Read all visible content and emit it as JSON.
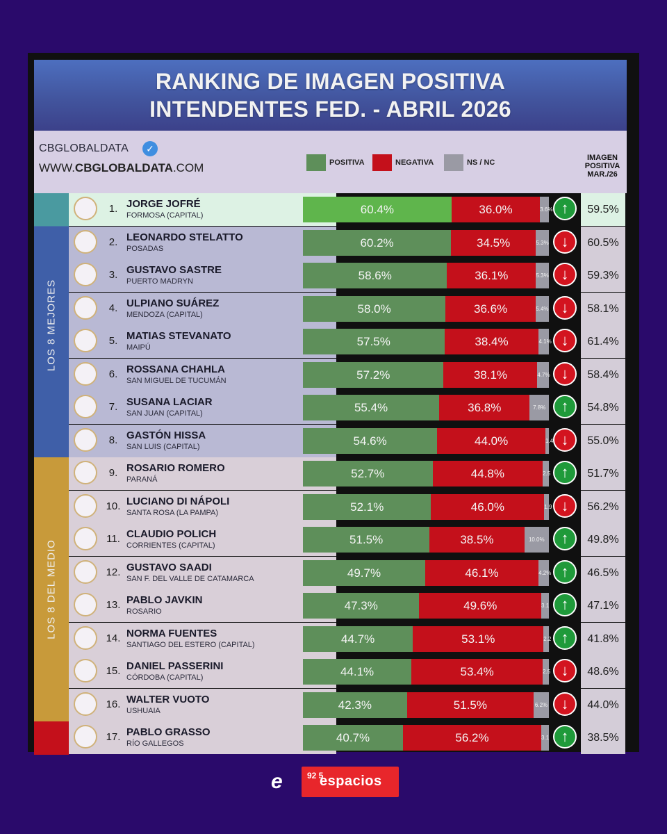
{
  "header": {
    "title_line1": "RANKING DE IMAGEN POSITIVA",
    "title_line2": "INTENDENTES FED. - ABRIL 2026"
  },
  "brand": {
    "name": "CBGLOBALDATA",
    "url_prefix": "WWW.",
    "url_bold": "CBGLOBALDATA",
    "url_suffix": ".COM"
  },
  "legend": [
    {
      "label": "POSITIVA",
      "color": "#5e8f5a"
    },
    {
      "label": "NEGATIVA",
      "color": "#c4101b"
    },
    {
      "label": "NS / NC",
      "color": "#9a9aa4"
    }
  ],
  "prev_column_header": "IMAGEN POSITIVA MAR./26",
  "groups": [
    {
      "label": "LOS 8 MEJORES",
      "color": "#3f5fa8",
      "row_start": 0,
      "row_count": 8
    },
    {
      "label": "LOS 8 DEL MEDIO",
      "color": "#c89a3a",
      "row_start": 8,
      "row_count": 8
    },
    {
      "label": "",
      "color": "#c4101b",
      "row_start": 16,
      "row_count": 1
    }
  ],
  "footer": {
    "logo_mark": "e",
    "logo_number": "92 5",
    "logo_text": "espacios"
  },
  "chart_data": {
    "type": "bar",
    "title": "RANKING DE IMAGEN POSITIVA INTENDENTES FED. - ABRIL 2026",
    "stacked": true,
    "orientation": "horizontal",
    "series_names": [
      "POSITIVA",
      "NEGATIVA",
      "NS / NC"
    ],
    "rows": [
      {
        "rank": "1.",
        "name": "JORGE JOFRÉ",
        "city": "FORMOSA (CAPITAL)",
        "positiva": 60.4,
        "negativa": 36.0,
        "nsnc": 3.6,
        "positiva_label": "60.4%",
        "negativa_label": "36.0%",
        "nsnc_label": "3.6%",
        "trend": "up",
        "prev_label": "59.5%"
      },
      {
        "rank": "2.",
        "name": "LEONARDO STELATTO",
        "city": "POSADAS",
        "positiva": 60.2,
        "negativa": 34.5,
        "nsnc": 5.3,
        "positiva_label": "60.2%",
        "negativa_label": "34.5%",
        "nsnc_label": "5.3%",
        "trend": "down",
        "prev_label": "60.5%"
      },
      {
        "rank": "3.",
        "name": "GUSTAVO SASTRE",
        "city": "PUERTO MADRYN",
        "positiva": 58.6,
        "negativa": 36.1,
        "nsnc": 5.3,
        "positiva_label": "58.6%",
        "negativa_label": "36.1%",
        "nsnc_label": "5.3%",
        "trend": "down",
        "prev_label": "59.3%"
      },
      {
        "rank": "4.",
        "name": "ULPIANO SUÁREZ",
        "city": "MENDOZA (CAPITAL)",
        "positiva": 58.0,
        "negativa": 36.6,
        "nsnc": 5.4,
        "positiva_label": "58.0%",
        "negativa_label": "36.6%",
        "nsnc_label": "5.4%",
        "trend": "down",
        "prev_label": "58.1%"
      },
      {
        "rank": "5.",
        "name": "MATIAS STEVANATO",
        "city": "MAIPÚ",
        "positiva": 57.5,
        "negativa": 38.4,
        "nsnc": 4.1,
        "positiva_label": "57.5%",
        "negativa_label": "38.4%",
        "nsnc_label": "4.1%",
        "trend": "down",
        "prev_label": "61.4%"
      },
      {
        "rank": "6.",
        "name": "ROSSANA CHAHLA",
        "city": "SAN MIGUEL DE TUCUMÁN",
        "positiva": 57.2,
        "negativa": 38.1,
        "nsnc": 4.7,
        "positiva_label": "57.2%",
        "negativa_label": "38.1%",
        "nsnc_label": "4.7%",
        "trend": "down",
        "prev_label": "58.4%"
      },
      {
        "rank": "7.",
        "name": "SUSANA LACIAR",
        "city": "SAN JUAN (CAPITAL)",
        "positiva": 55.4,
        "negativa": 36.8,
        "nsnc": 7.8,
        "positiva_label": "55.4%",
        "negativa_label": "36.8%",
        "nsnc_label": "7.8%",
        "trend": "up",
        "prev_label": "54.8%"
      },
      {
        "rank": "8.",
        "name": "GASTÓN HISSA",
        "city": "SAN LUIS (CAPITAL)",
        "positiva": 54.6,
        "negativa": 44.0,
        "nsnc": 1.4,
        "positiva_label": "54.6%",
        "negativa_label": "44.0%",
        "nsnc_label": "1.4",
        "trend": "down",
        "prev_label": "55.0%"
      },
      {
        "rank": "9.",
        "name": "ROSARIO ROMERO",
        "city": "PARANÁ",
        "positiva": 52.7,
        "negativa": 44.8,
        "nsnc": 2.5,
        "positiva_label": "52.7%",
        "negativa_label": "44.8%",
        "nsnc_label": "2.5",
        "trend": "up",
        "prev_label": "51.7%"
      },
      {
        "rank": "10.",
        "name": "LUCIANO DI NÁPOLI",
        "city": "SANTA ROSA (LA PAMPA)",
        "positiva": 52.1,
        "negativa": 46.0,
        "nsnc": 1.9,
        "positiva_label": "52.1%",
        "negativa_label": "46.0%",
        "nsnc_label": "1.9",
        "trend": "down",
        "prev_label": "56.2%"
      },
      {
        "rank": "11.",
        "name": "CLAUDIO POLICH",
        "city": "CORRIENTES (CAPITAL)",
        "positiva": 51.5,
        "negativa": 38.5,
        "nsnc": 10.0,
        "positiva_label": "51.5%",
        "negativa_label": "38.5%",
        "nsnc_label": "10.0%",
        "trend": "up",
        "prev_label": "49.8%"
      },
      {
        "rank": "12.",
        "name": "GUSTAVO SAADI",
        "city": "SAN F. DEL VALLE DE CATAMARCA",
        "positiva": 49.7,
        "negativa": 46.1,
        "nsnc": 4.2,
        "positiva_label": "49.7%",
        "negativa_label": "46.1%",
        "nsnc_label": "4.2%",
        "trend": "up",
        "prev_label": "46.5%"
      },
      {
        "rank": "13.",
        "name": "PABLO JAVKIN",
        "city": "ROSARIO",
        "positiva": 47.3,
        "negativa": 49.6,
        "nsnc": 3.1,
        "positiva_label": "47.3%",
        "negativa_label": "49.6%",
        "nsnc_label": "3.1",
        "trend": "up",
        "prev_label": "47.1%"
      },
      {
        "rank": "14.",
        "name": "NORMA FUENTES",
        "city": "SANTIAGO DEL ESTERO (CAPITAL)",
        "positiva": 44.7,
        "negativa": 53.1,
        "nsnc": 2.2,
        "positiva_label": "44.7%",
        "negativa_label": "53.1%",
        "nsnc_label": "2.2",
        "trend": "up",
        "prev_label": "41.8%"
      },
      {
        "rank": "15.",
        "name": "DANIEL PASSERINI",
        "city": "CÓRDOBA (CAPITAL)",
        "positiva": 44.1,
        "negativa": 53.4,
        "nsnc": 2.5,
        "positiva_label": "44.1%",
        "negativa_label": "53.4%",
        "nsnc_label": "2.5",
        "trend": "down",
        "prev_label": "48.6%"
      },
      {
        "rank": "16.",
        "name": "WALTER VUOTO",
        "city": "USHUAIA",
        "positiva": 42.3,
        "negativa": 51.5,
        "nsnc": 6.2,
        "positiva_label": "42.3%",
        "negativa_label": "51.5%",
        "nsnc_label": "6.2%",
        "trend": "down",
        "prev_label": "44.0%"
      },
      {
        "rank": "17.",
        "name": "PABLO GRASSO",
        "city": "RÍO GALLEGOS",
        "positiva": 40.7,
        "negativa": 56.2,
        "nsnc": 3.1,
        "positiva_label": "40.7%",
        "negativa_label": "56.2%",
        "nsnc_label": "3.1",
        "trend": "up",
        "prev_label": "38.5%"
      }
    ]
  }
}
